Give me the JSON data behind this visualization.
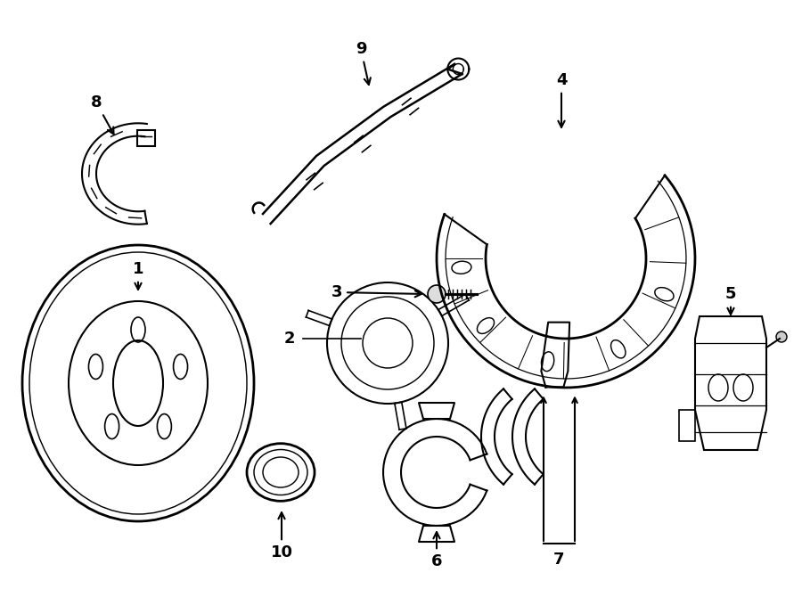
{
  "background_color": "#ffffff",
  "line_color": "#000000",
  "line_width": 1.5,
  "fig_width": 9.0,
  "fig_height": 6.61,
  "dpi": 100
}
